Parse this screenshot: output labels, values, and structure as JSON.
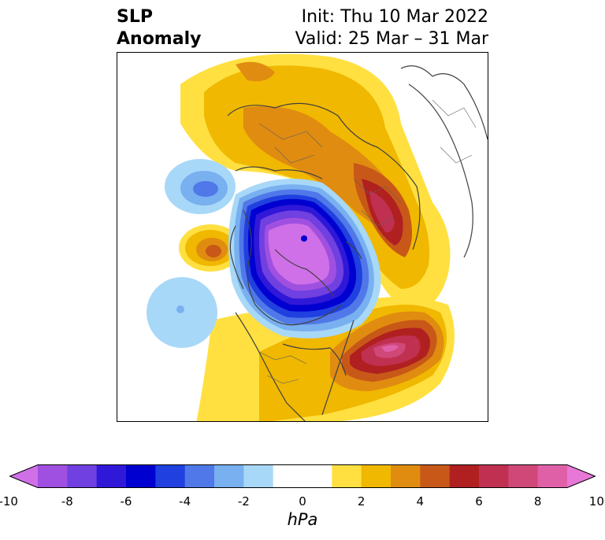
{
  "title": {
    "left_line1": "SLP",
    "left_line2": "Anomaly",
    "right_line1": "Init: Thu 10 Mar 2022",
    "right_line2": "Valid: 25 Mar – 31 Mar"
  },
  "colorbar": {
    "label": "hPa",
    "min": -11,
    "max": 11,
    "extend": "both",
    "ticks": [
      "-10",
      "-8",
      "-6",
      "-4",
      "-2",
      "0",
      "2",
      "4",
      "6",
      "8",
      "10"
    ],
    "tick_values": [
      -10,
      -8,
      -6,
      -4,
      -2,
      0,
      2,
      4,
      6,
      8,
      10
    ],
    "levels": [
      {
        "from": -11,
        "to": -9,
        "color": "#d070e8"
      },
      {
        "from": -9,
        "to": -8,
        "color": "#a050e0"
      },
      {
        "from": -8,
        "to": -7,
        "color": "#7040e0"
      },
      {
        "from": -7,
        "to": -6,
        "color": "#3018d8"
      },
      {
        "from": -6,
        "to": -5,
        "color": "#0000d0"
      },
      {
        "from": -5,
        "to": -4,
        "color": "#2040e0"
      },
      {
        "from": -4,
        "to": -3,
        "color": "#5078e8"
      },
      {
        "from": -3,
        "to": -2,
        "color": "#78b0f0"
      },
      {
        "from": -2,
        "to": -1,
        "color": "#a8d8f8"
      },
      {
        "from": -1,
        "to": 1,
        "color": "#ffffff"
      },
      {
        "from": 1,
        "to": 2,
        "color": "#ffe040"
      },
      {
        "from": 2,
        "to": 3,
        "color": "#f0b800"
      },
      {
        "from": 3,
        "to": 4,
        "color": "#e08c10"
      },
      {
        "from": 4,
        "to": 5,
        "color": "#c85818"
      },
      {
        "from": 5,
        "to": 6,
        "color": "#b02020"
      },
      {
        "from": 6,
        "to": 7,
        "color": "#c03050"
      },
      {
        "from": 7,
        "to": 8,
        "color": "#d04878"
      },
      {
        "from": 8,
        "to": 9,
        "color": "#e060a8"
      },
      {
        "from": 9,
        "to": 11,
        "color": "#e878d8"
      }
    ]
  },
  "map": {
    "projection": "polar-stereographic",
    "field": "sea-level-pressure-anomaly",
    "colors": {
      "coastline": "#404040",
      "frame": "#000000"
    }
  }
}
